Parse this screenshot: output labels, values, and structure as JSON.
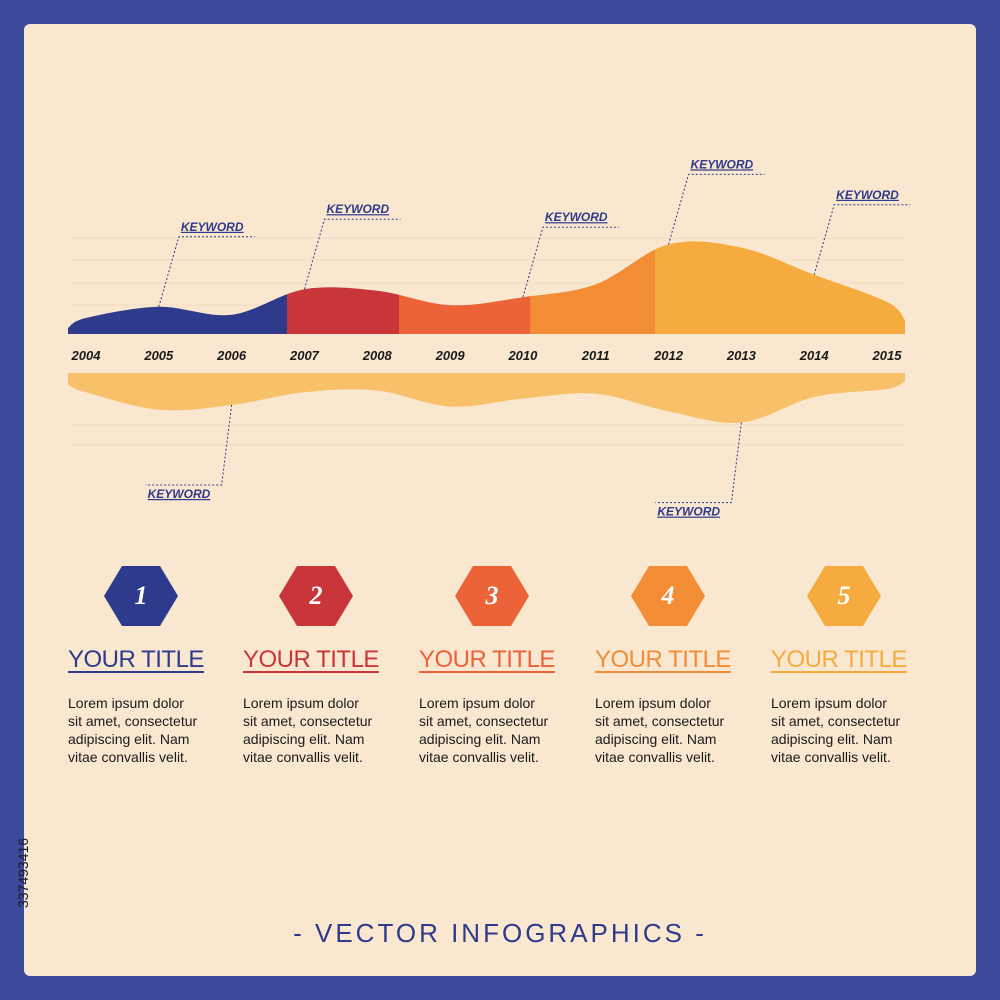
{
  "colors": {
    "navy": "#2e3a8c",
    "red": "#c8363a",
    "orange_red": "#ec6339",
    "orange": "#f28c35",
    "amber": "#f5ab3e",
    "light_amber": "#f9c06a",
    "background": "#f9e7d0",
    "frame": "#3c4a9c"
  },
  "chart_data": {
    "type": "area",
    "x": [
      "2004",
      "2005",
      "2006",
      "2007",
      "2008",
      "2009",
      "2010",
      "2011",
      "2012",
      "2013",
      "2014",
      "2015"
    ],
    "series": [
      {
        "values": [
          1.0,
          1.7,
          1.2,
          2.8,
          2.7,
          1.8,
          2.3,
          3.1,
          5.6,
          5.4,
          3.7,
          2.0
        ]
      },
      {
        "values": [
          1.2,
          2.3,
          2.0,
          1.2,
          1.1,
          2.1,
          1.6,
          1.3,
          2.4,
          3.1,
          1.5,
          1.0
        ]
      }
    ],
    "segment_colors": [
      "navy",
      "red",
      "orange_red",
      "orange",
      "amber"
    ],
    "mirror_color": "light_amber",
    "annotations": [
      {
        "text": "KEYWORD",
        "side": "top",
        "year": "2005"
      },
      {
        "text": "KEYWORD",
        "side": "top",
        "year": "2007"
      },
      {
        "text": "KEYWORD",
        "side": "top",
        "year": "2010"
      },
      {
        "text": "KEYWORD",
        "side": "top",
        "year": "2012"
      },
      {
        "text": "KEYWORD",
        "side": "top",
        "year": "2014"
      },
      {
        "text": "KEYWORD",
        "side": "bottom",
        "year": "2006"
      },
      {
        "text": "KEYWORD",
        "side": "bottom",
        "year": "2013"
      }
    ],
    "grid": true
  },
  "blocks": [
    {
      "number": "1",
      "title": "YOUR TITLE",
      "color": "#2e3a8c",
      "text": "Lorem ipsum dolor\nsit amet, consectetur\nadipiscing elit. Nam\nvitae convallis velit."
    },
    {
      "number": "2",
      "title": "YOUR TITLE",
      "color": "#c8363a",
      "text": "Lorem ipsum dolor\nsit amet, consectetur\nadipiscing elit. Nam\nvitae convallis velit."
    },
    {
      "number": "3",
      "title": "YOUR TITLE",
      "color": "#ec6339",
      "text": "Lorem ipsum dolor\nsit amet, consectetur\nadipiscing elit. Nam\nvitae convallis velit."
    },
    {
      "number": "4",
      "title": "YOUR TITLE",
      "color": "#f28c35",
      "text": "Lorem ipsum dolor\nsit amet, consectetur\nadipiscing elit. Nam\nvitae convallis velit."
    },
    {
      "number": "5",
      "title": "YOUR TITLE",
      "color": "#f5ab3e",
      "text": "Lorem ipsum dolor\nsit amet, consectetur\nadipiscing elit. Nam\nvitae convallis velit."
    }
  ],
  "footer": "- VECTOR INFOGRAPHICS -",
  "stock_id": "337493416"
}
